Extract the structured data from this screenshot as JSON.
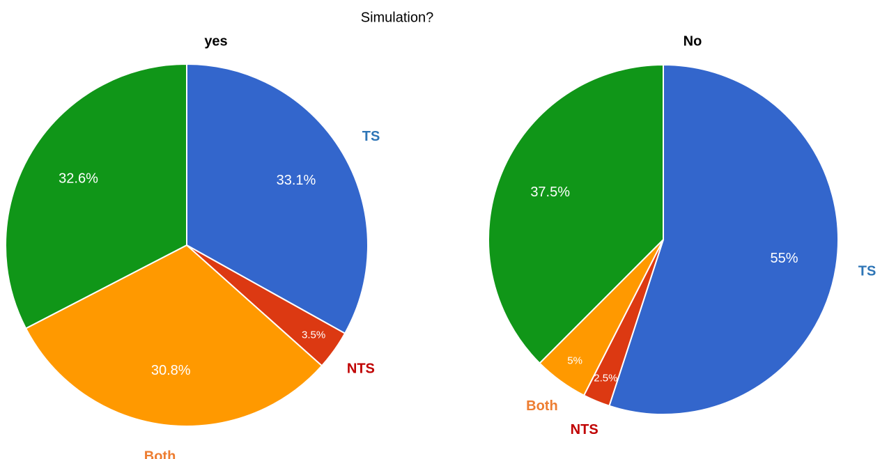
{
  "title": "Simulation?",
  "chart_data": [
    {
      "type": "pie",
      "title": "yes",
      "categories": [
        "TS",
        "NTS",
        "Both",
        null
      ],
      "values": [
        33.1,
        3.5,
        30.8,
        32.6
      ],
      "value_labels": [
        "33.1%",
        "3.5%",
        "30.8%",
        "32.6%"
      ],
      "colors": [
        "#3366cc",
        "#dc3912",
        "#ff9900",
        "#109618"
      ],
      "label_colors": [
        "#2e75b6",
        "#c00000",
        "#ed7d31",
        null
      ]
    },
    {
      "type": "pie",
      "title": "No",
      "categories": [
        "TS",
        "NTS",
        "Both",
        null
      ],
      "values": [
        55,
        2.5,
        5,
        37.5
      ],
      "value_labels": [
        "55%",
        "2.5%",
        "5%",
        "37.5%"
      ],
      "colors": [
        "#3366cc",
        "#dc3912",
        "#ff9900",
        "#109618"
      ],
      "label_colors": [
        "#2e75b6",
        "#c00000",
        "#ed7d31",
        null
      ]
    }
  ]
}
